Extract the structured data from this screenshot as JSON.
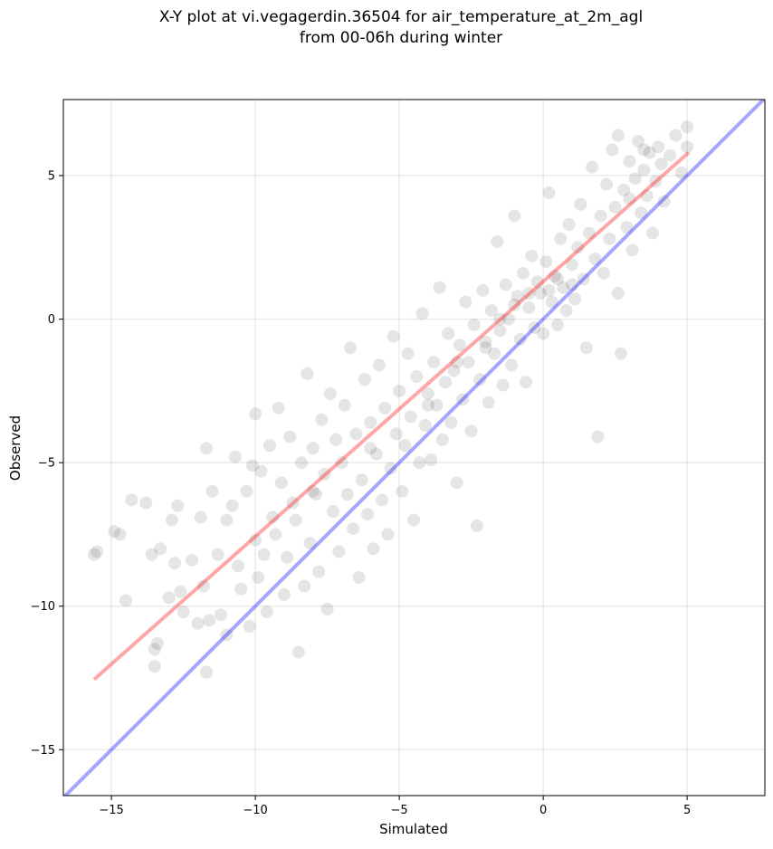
{
  "chart_data": {
    "type": "scatter",
    "title": [
      "X-Y plot at vi.vegagerdin.36504 for air_temperature_at_2m_agl",
      "from 00-06h during winter"
    ],
    "x_label": "Simulated",
    "y_label": "Observed",
    "xlim": [
      -16.67,
      7.7
    ],
    "ylim": [
      -16.6,
      7.65
    ],
    "xticks": [
      {
        "value": -15,
        "label": "−15"
      },
      {
        "value": -10,
        "label": "−10"
      },
      {
        "value": -5,
        "label": "−5"
      },
      0,
      5
    ],
    "yticks": [
      {
        "value": -15,
        "label": "−15"
      },
      {
        "value": -10,
        "label": "−10"
      },
      {
        "value": -5,
        "label": "−5"
      },
      0,
      5
    ],
    "grid": true,
    "series": [
      {
        "color": "#000000",
        "opacity": 0.1,
        "x": [
          -15.6,
          -15.5,
          -14.9,
          -14.7,
          -14.5,
          -14.3,
          -13.8,
          -13.6,
          -13.5,
          -13.5,
          -13.4,
          -13.3,
          -13.0,
          -12.9,
          -12.8,
          -12.7,
          -12.6,
          -12.5,
          -12.2,
          -12.0,
          -11.9,
          -11.8,
          -11.7,
          -11.7,
          -11.6,
          -11.5,
          -11.3,
          -11.2,
          -11.0,
          -11.0,
          -10.8,
          -10.7,
          -10.6,
          -10.5,
          -10.3,
          -10.2,
          -10.1,
          -10.0,
          -10.0,
          -9.9,
          -9.8,
          -9.7,
          -9.6,
          -9.5,
          -9.4,
          -9.3,
          -9.2,
          -9.1,
          -9.0,
          -8.9,
          -8.8,
          -8.7,
          -8.6,
          -8.5,
          -8.4,
          -8.3,
          -8.2,
          -8.1,
          -8.0,
          -7.9,
          -7.8,
          -7.7,
          -7.6,
          -7.5,
          -7.4,
          -7.3,
          -7.2,
          -7.1,
          -7.0,
          -6.9,
          -6.8,
          -6.7,
          -6.6,
          -6.5,
          -6.4,
          -6.3,
          -6.2,
          -6.1,
          -6.0,
          -5.9,
          -5.8,
          -5.7,
          -5.6,
          -5.5,
          -5.4,
          -5.3,
          -5.2,
          -5.1,
          -5.0,
          -4.9,
          -4.8,
          -4.7,
          -4.6,
          -4.5,
          -4.4,
          -4.3,
          -4.2,
          -4.1,
          -4.0,
          -3.9,
          -3.8,
          -3.7,
          -3.6,
          -3.5,
          -3.4,
          -3.3,
          -3.2,
          -3.1,
          -3.0,
          -2.9,
          -2.8,
          -2.7,
          -2.6,
          -2.5,
          -2.4,
          -2.3,
          -2.2,
          -2.1,
          -2.0,
          -1.9,
          -1.8,
          -1.7,
          -1.6,
          -1.5,
          -1.4,
          -1.3,
          -1.2,
          -1.1,
          -1.0,
          -0.9,
          -0.8,
          -0.7,
          -0.6,
          -0.5,
          -0.4,
          -0.3,
          -0.2,
          -0.1,
          0.0,
          0.1,
          0.2,
          0.3,
          0.4,
          0.5,
          0.6,
          0.7,
          0.8,
          0.9,
          1.0,
          1.1,
          1.2,
          1.3,
          1.4,
          1.5,
          1.6,
          1.7,
          1.8,
          1.9,
          2.0,
          2.1,
          2.2,
          2.3,
          2.4,
          2.5,
          2.6,
          2.7,
          2.8,
          2.9,
          3.0,
          3.1,
          3.2,
          3.3,
          3.4,
          3.5,
          3.6,
          3.7,
          3.8,
          3.9,
          4.0,
          4.1,
          4.2,
          4.4,
          4.6,
          4.8,
          5.0,
          5.0,
          2.6,
          3.5,
          3.0,
          1.0,
          -0.5,
          0.2,
          0.5,
          -1.0,
          -1.5,
          -2.0,
          -3.0,
          -4.0,
          -6.0,
          -8.0
        ],
        "y": [
          -8.2,
          -8.1,
          -7.4,
          -7.5,
          -9.8,
          -6.3,
          -6.4,
          -8.2,
          -11.5,
          -12.1,
          -11.3,
          -8.0,
          -9.7,
          -7.0,
          -8.5,
          -6.5,
          -9.5,
          -10.2,
          -8.4,
          -10.6,
          -6.9,
          -9.3,
          -4.5,
          -12.3,
          -10.5,
          -6.0,
          -8.2,
          -10.3,
          -7.0,
          -11.0,
          -6.5,
          -4.8,
          -8.6,
          -9.4,
          -6.0,
          -10.7,
          -5.1,
          -3.3,
          -7.7,
          -9.0,
          -5.3,
          -8.2,
          -10.2,
          -4.4,
          -6.9,
          -7.5,
          -3.1,
          -5.7,
          -9.6,
          -8.3,
          -4.1,
          -6.4,
          -7.0,
          -11.6,
          -5.0,
          -9.3,
          -1.9,
          -7.8,
          -4.5,
          -6.1,
          -8.8,
          -3.5,
          -5.4,
          -10.1,
          -2.6,
          -6.7,
          -4.2,
          -8.1,
          -5.0,
          -3.0,
          -6.1,
          -1.0,
          -7.3,
          -4.0,
          -9.0,
          -5.6,
          -2.1,
          -6.8,
          -3.6,
          -8.0,
          -4.7,
          -1.6,
          -6.3,
          -3.1,
          -7.5,
          -5.2,
          -0.6,
          -4.0,
          -2.5,
          -6.0,
          -4.4,
          -1.2,
          -3.4,
          -7.0,
          -2.0,
          -5.0,
          0.2,
          -3.7,
          -2.6,
          -4.9,
          -1.5,
          -3.0,
          1.1,
          -4.2,
          -2.2,
          -0.5,
          -3.6,
          -1.8,
          -5.7,
          -0.9,
          -2.8,
          0.6,
          -1.5,
          -3.9,
          -0.2,
          -7.2,
          -2.1,
          1.0,
          -0.8,
          -2.9,
          0.3,
          -1.2,
          2.7,
          -0.4,
          -2.3,
          1.2,
          0.0,
          -1.6,
          3.6,
          0.8,
          -0.7,
          1.6,
          -2.2,
          0.4,
          2.2,
          -0.3,
          1.3,
          0.9,
          -0.5,
          2.0,
          4.4,
          0.6,
          1.5,
          -0.2,
          2.8,
          1.1,
          0.3,
          3.3,
          1.9,
          0.7,
          2.5,
          4.0,
          1.4,
          -1.0,
          3.0,
          5.3,
          2.1,
          -4.1,
          3.6,
          1.6,
          4.7,
          2.8,
          5.9,
          3.9,
          0.9,
          -1.2,
          4.5,
          3.2,
          5.5,
          2.4,
          4.9,
          6.2,
          3.7,
          5.2,
          4.3,
          5.8,
          3.0,
          4.8,
          6.0,
          5.4,
          4.1,
          5.7,
          6.4,
          5.1,
          6.0,
          6.7,
          6.4,
          5.9,
          4.2,
          1.2,
          0.9,
          1.0,
          1.4,
          0.5,
          0.0,
          -1.0,
          -1.5,
          -3.0,
          -4.5,
          -6.0
        ]
      }
    ],
    "lines": [
      {
        "color": "#ff0000",
        "opacity": 0.35,
        "x": [
          -15.6,
          5.05
        ],
        "y": [
          -12.55,
          5.8
        ]
      },
      {
        "color": "#0000ff",
        "opacity": 0.35,
        "x": [
          -16.67,
          7.7
        ],
        "y": [
          -16.67,
          7.7
        ]
      }
    ]
  }
}
